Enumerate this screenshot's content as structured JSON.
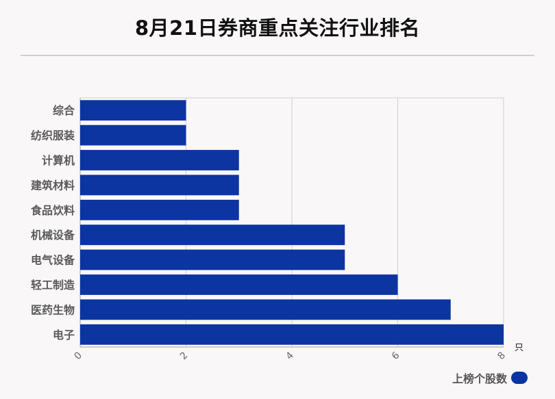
{
  "title": "8月21日券商重点关注行业排名",
  "legend": {
    "label": "上榜个股数"
  },
  "colors": {
    "bar": "#0c35a1",
    "grid": "#cfcfcf",
    "axis": "#bdbdbd"
  },
  "chart_data": {
    "type": "bar",
    "orientation": "horizontal",
    "categories": [
      "综合",
      "纺织服装",
      "计算机",
      "建筑材料",
      "食品饮料",
      "机械设备",
      "电气设备",
      "轻工制造",
      "医药生物",
      "电子"
    ],
    "series": [
      {
        "name": "上榜个股数",
        "values": [
          2,
          2,
          3,
          3,
          3,
          5,
          5,
          6,
          7,
          8
        ]
      }
    ],
    "xlim": [
      0,
      8
    ],
    "xticks": [
      0,
      2,
      4,
      6,
      8
    ],
    "xunit": "只",
    "grid": true,
    "legend_position": "bottom-right"
  }
}
